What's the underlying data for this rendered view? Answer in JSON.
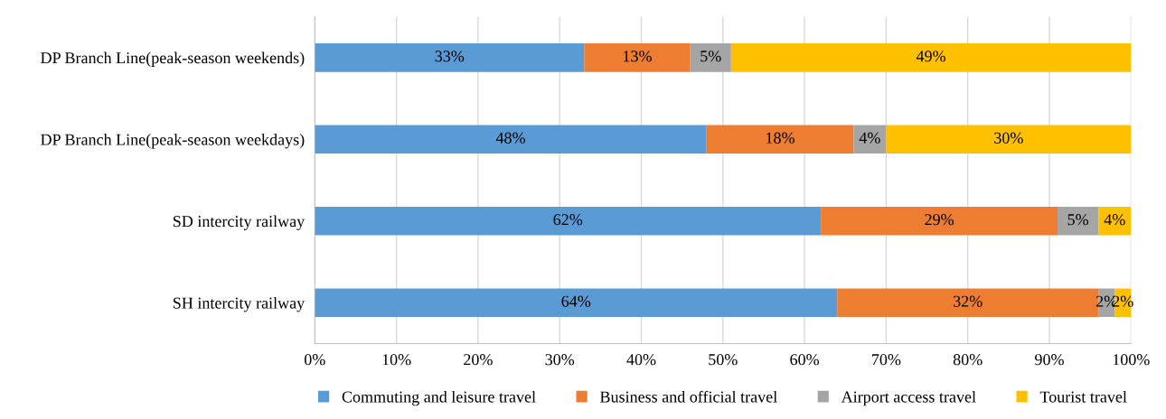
{
  "chart_data": {
    "type": "bar",
    "orientation": "horizontal",
    "stacked": true,
    "categories": [
      "DP Branch Line(peak-season weekends)",
      "DP Branch Line(peak-season weekdays)",
      "SD intercity railway",
      "SH intercity railway"
    ],
    "series": [
      {
        "name": "Commuting and leisure travel",
        "color": "#5b9bd5",
        "values": [
          33,
          48,
          62,
          64
        ],
        "value_labels": [
          "33%",
          "48%",
          "62%",
          "64%"
        ]
      },
      {
        "name": "Business and official travel",
        "color": "#ed7d31",
        "values": [
          13,
          18,
          29,
          32
        ],
        "value_labels": [
          "13%",
          "18%",
          "29%",
          "32%"
        ]
      },
      {
        "name": "Airport access travel",
        "color": "#a5a5a5",
        "values": [
          5,
          4,
          5,
          2
        ],
        "value_labels": [
          "5%",
          "4%",
          "5%",
          "2%"
        ]
      },
      {
        "name": "Tourist travel",
        "color": "#ffc000",
        "values": [
          49,
          30,
          4,
          2
        ],
        "value_labels": [
          "49%",
          "30%",
          "4%",
          "2%"
        ]
      }
    ],
    "xlim": [
      0,
      100
    ],
    "xticks": [
      {
        "value": 0,
        "label": "0%"
      },
      {
        "value": 10,
        "label": "10%"
      },
      {
        "value": 20,
        "label": "20%"
      },
      {
        "value": 30,
        "label": "30%"
      },
      {
        "value": 40,
        "label": "40%"
      },
      {
        "value": 50,
        "label": "50%"
      },
      {
        "value": 60,
        "label": "60%"
      },
      {
        "value": 70,
        "label": "70%"
      },
      {
        "value": 80,
        "label": "80%"
      },
      {
        "value": 90,
        "label": "90%"
      },
      {
        "value": 100,
        "label": "100%"
      }
    ],
    "grid": "x",
    "legend": "bottom"
  }
}
